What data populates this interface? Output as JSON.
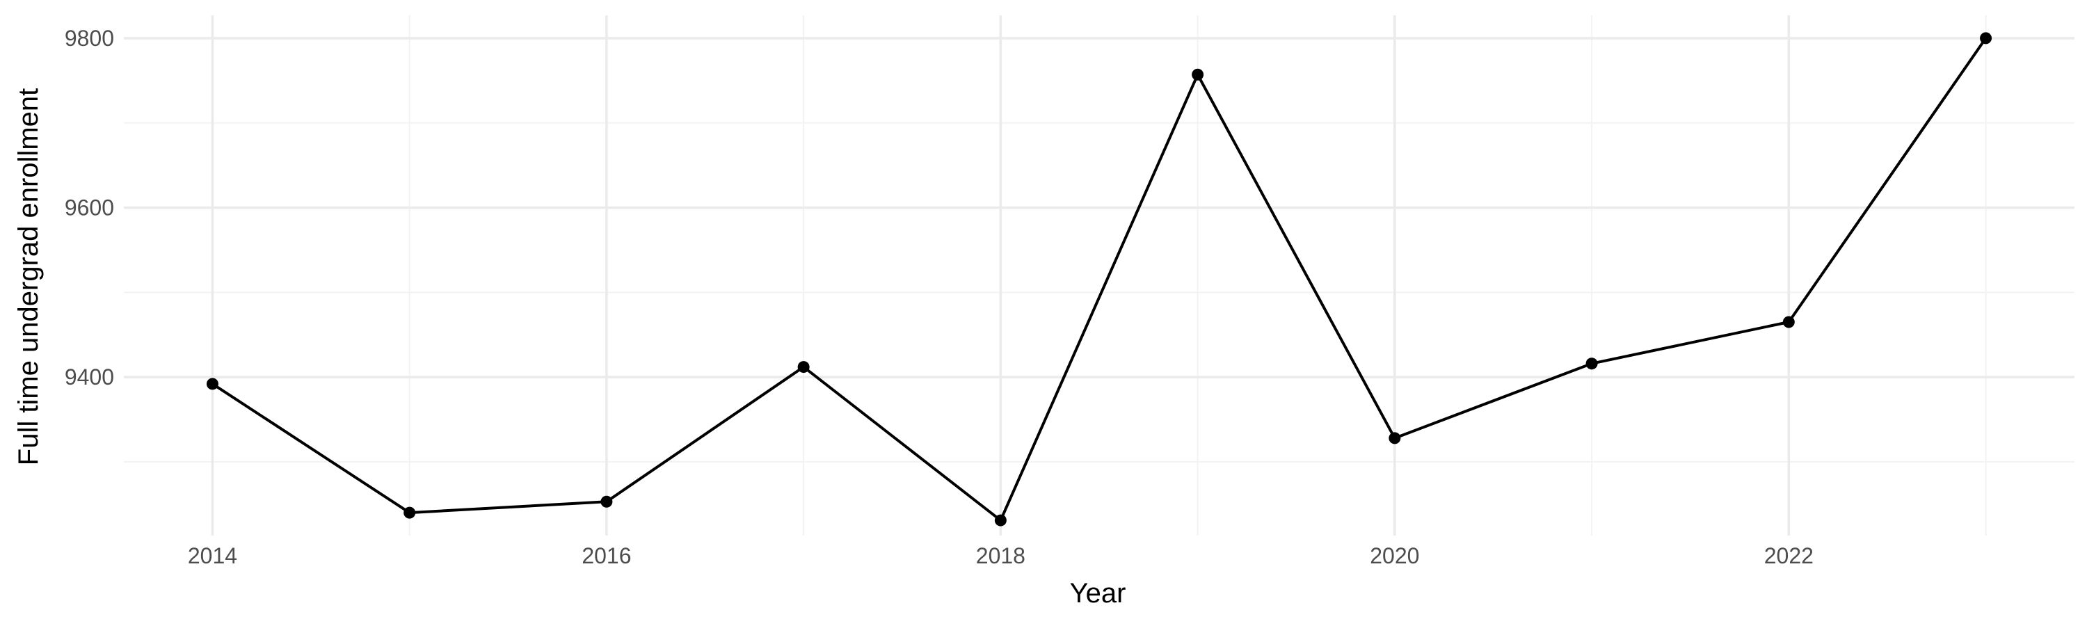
{
  "chart_data": {
    "type": "line",
    "xlabel": "Year",
    "ylabel": "Full time undergrad enrollment",
    "x": [
      2014,
      2015,
      2016,
      2017,
      2018,
      2019,
      2020,
      2021,
      2022,
      2023
    ],
    "series": [
      {
        "values": [
          9392,
          9240,
          9253,
          9412,
          9231,
          9757,
          9328,
          9416,
          9465,
          9800
        ]
      }
    ],
    "xlim": [
      2013.55,
      2023.45
    ],
    "ylim": [
      9213,
      9827
    ],
    "x_ticks": [
      2014,
      2016,
      2018,
      2020,
      2022
    ],
    "x_minor_ticks": [
      2015,
      2017,
      2019,
      2021,
      2023
    ],
    "y_ticks": [
      9400,
      9600,
      9800
    ],
    "y_minor_ticks": [
      9300,
      9500,
      9700
    ],
    "grid": true,
    "legend": "none",
    "colors": {
      "line": "#000000",
      "point": "#000000",
      "grid": "#ebebeb"
    }
  }
}
